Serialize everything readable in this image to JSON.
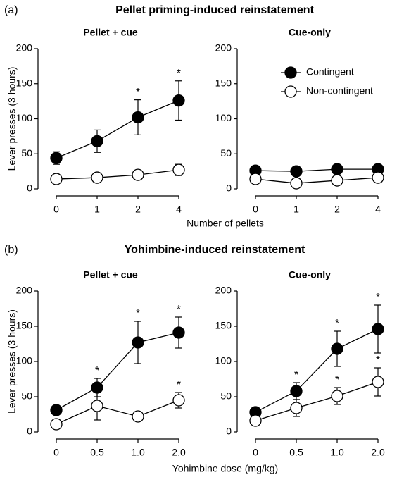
{
  "sections": [
    {
      "label": "(a)",
      "title": "Pellet priming-induced reinstatement",
      "xlabel": "Number of pellets"
    },
    {
      "label": "(b)",
      "title": "Yohimbine-induced reinstatement",
      "xlabel": "Yohimbine dose (mg/kg)"
    }
  ],
  "chart_data": [
    {
      "type": "line",
      "title": "Pellet + cue",
      "ylabel": "Lever presses (3 hours)",
      "categories": [
        "0",
        "1",
        "2",
        "4"
      ],
      "ylim": [
        0,
        200
      ],
      "yticks": [
        0,
        50,
        100,
        150,
        200
      ],
      "series": [
        {
          "name": "Contingent",
          "color": "#000000",
          "values": [
            44,
            68,
            102,
            126
          ],
          "errors": [
            9,
            16,
            25,
            28
          ],
          "significance": [
            null,
            null,
            "*",
            "*"
          ]
        },
        {
          "name": "Non-contingent",
          "color": "#ffffff",
          "values": [
            14,
            16,
            20,
            27
          ],
          "errors": [
            3,
            3,
            3,
            8
          ],
          "significance": [
            null,
            null,
            null,
            null
          ]
        }
      ]
    },
    {
      "type": "line",
      "title": "Cue-only",
      "legend": true,
      "categories": [
        "0",
        "1",
        "2",
        "4"
      ],
      "ylim": [
        0,
        200
      ],
      "yticks": [
        0,
        50,
        100,
        150,
        200
      ],
      "series": [
        {
          "name": "Contingent",
          "color": "#000000",
          "values": [
            26,
            25,
            28,
            28
          ],
          "errors": [
            3,
            3,
            3,
            3
          ],
          "significance": [
            null,
            null,
            null,
            null
          ]
        },
        {
          "name": "Non-contingent",
          "color": "#ffffff",
          "values": [
            14,
            8,
            12,
            16
          ],
          "errors": [
            3,
            3,
            3,
            3
          ],
          "significance": [
            null,
            null,
            null,
            null
          ]
        }
      ]
    },
    {
      "type": "line",
      "title": "Pellet + cue",
      "ylabel": "Lever presses (3 hours)",
      "categories": [
        "0",
        "0.5",
        "1.0",
        "2.0"
      ],
      "ylim": [
        0,
        200
      ],
      "yticks": [
        0,
        50,
        100,
        150,
        200
      ],
      "series": [
        {
          "name": "Contingent",
          "color": "#000000",
          "values": [
            31,
            63,
            127,
            141
          ],
          "errors": [
            4,
            13,
            30,
            22
          ],
          "significance": [
            null,
            "*",
            "*",
            "*"
          ]
        },
        {
          "name": "Non-contingent",
          "color": "#ffffff",
          "values": [
            11,
            37,
            22,
            45
          ],
          "errors": [
            3,
            20,
            3,
            11
          ],
          "significance": [
            null,
            null,
            null,
            "*"
          ]
        }
      ]
    },
    {
      "type": "line",
      "title": "Cue-only",
      "categories": [
        "0",
        "0.5",
        "1.0",
        "2.0"
      ],
      "ylim": [
        0,
        200
      ],
      "yticks": [
        0,
        50,
        100,
        150,
        200
      ],
      "series": [
        {
          "name": "Contingent",
          "color": "#000000",
          "values": [
            28,
            58,
            118,
            146
          ],
          "errors": [
            4,
            12,
            25,
            34
          ],
          "significance": [
            null,
            "*",
            "*",
            "*"
          ]
        },
        {
          "name": "Non-contingent",
          "color": "#ffffff",
          "values": [
            16,
            34,
            51,
            71
          ],
          "errors": [
            3,
            12,
            12,
            20
          ],
          "significance": [
            null,
            "*",
            "*",
            "*"
          ]
        }
      ]
    }
  ]
}
